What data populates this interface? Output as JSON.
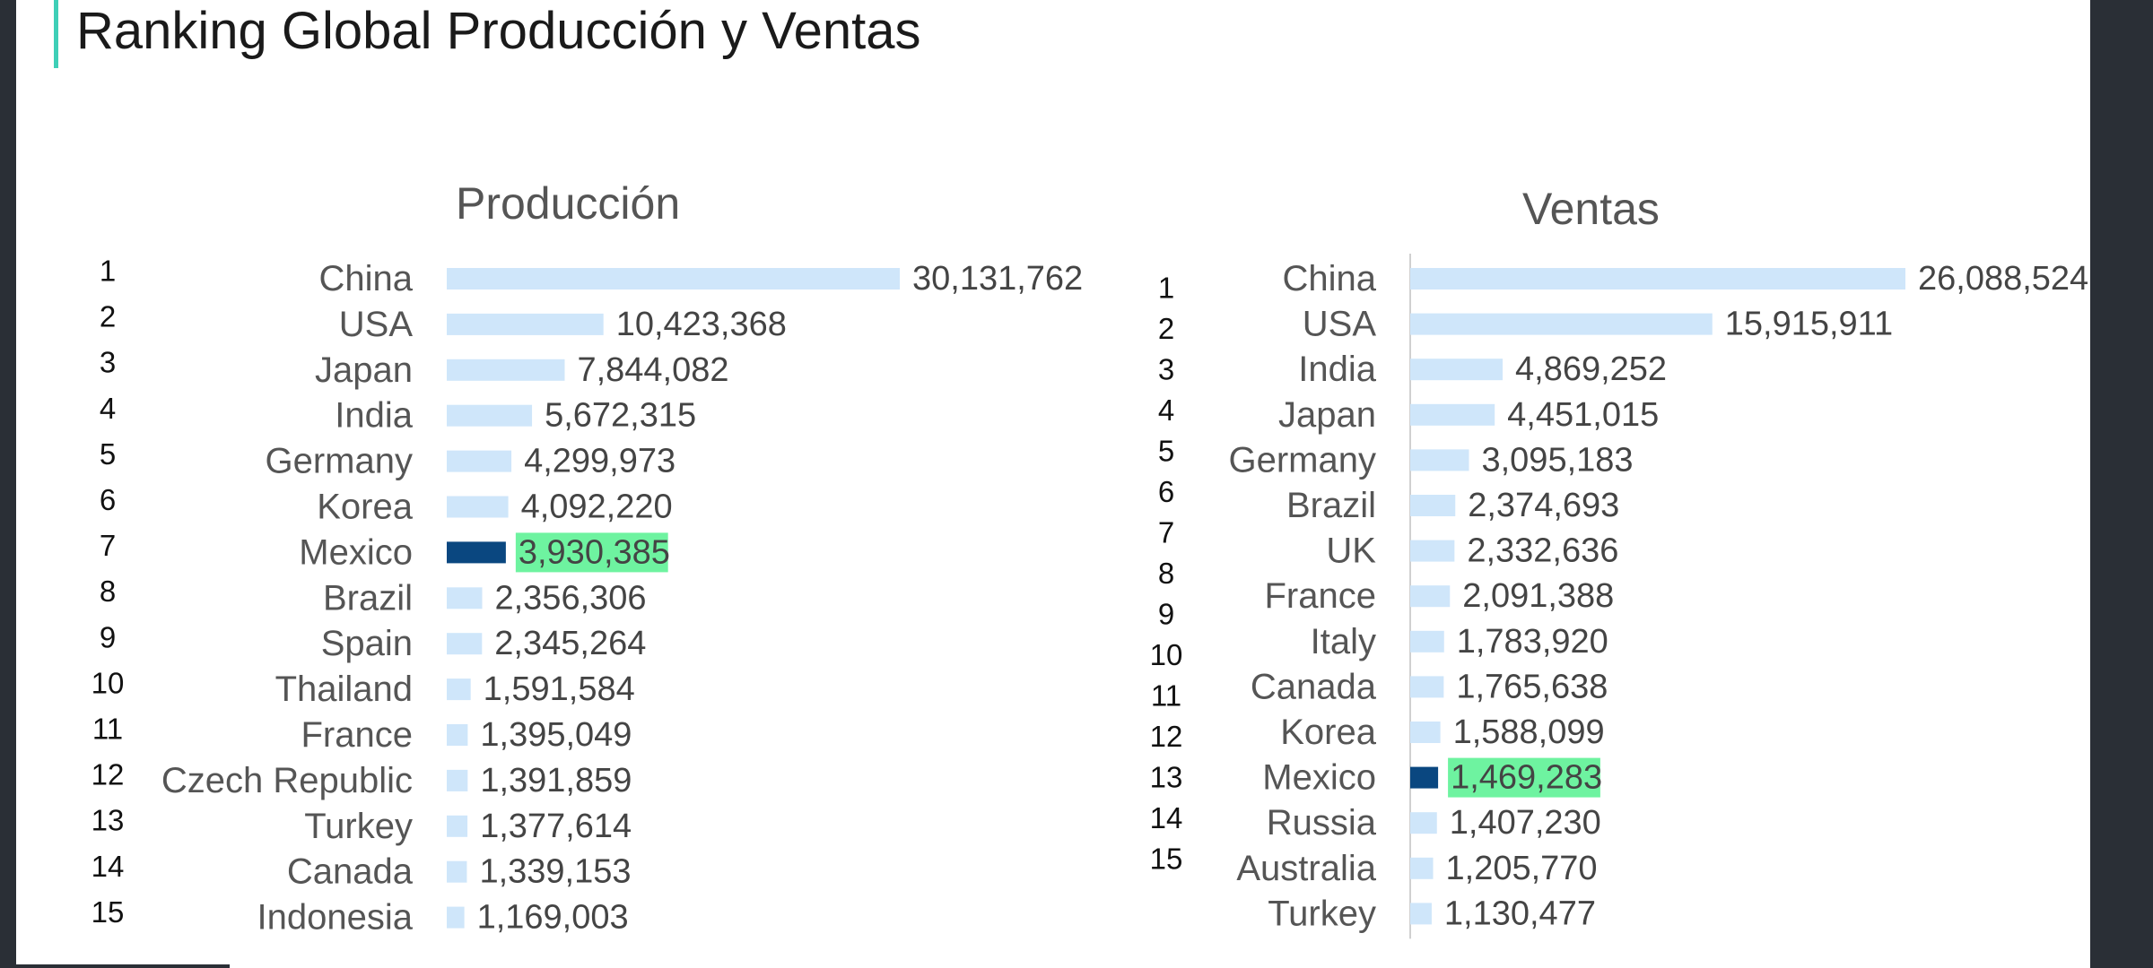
{
  "slide": {
    "title": "Ranking Global Producción y Ventas",
    "accent_color": "#3ecfb7"
  },
  "chart_data": [
    {
      "type": "bar",
      "orientation": "horizontal",
      "title": "Producción",
      "ranks": [
        "1",
        "2",
        "3",
        "4",
        "5",
        "6",
        "7",
        "8",
        "9",
        "10",
        "11",
        "12",
        "13",
        "14",
        "15"
      ],
      "categories": [
        "China",
        "USA",
        "Japan",
        "India",
        "Germany",
        "Korea",
        "Mexico",
        "Brazil",
        "Spain",
        "Thailand",
        "France",
        "Czech Republic",
        "Turkey",
        "Canada",
        "Indonesia"
      ],
      "values": [
        30131762,
        10423368,
        7844082,
        5672315,
        4299973,
        4092220,
        3930385,
        2356306,
        2345264,
        1591584,
        1395049,
        1391859,
        1377614,
        1339153,
        1169003
      ],
      "value_labels": [
        "30,131,762",
        "10,423,368",
        "7,844,082",
        "5,672,315",
        "4,299,973",
        "4,092,220",
        "3,930,385",
        "2,356,306",
        "2,345,264",
        "1,591,584",
        "1,395,049",
        "1,391,859",
        "1,377,614",
        "1,339,153",
        "1,169,003"
      ],
      "highlight": "Mexico",
      "bar_color": "#cfe6fa",
      "highlight_color": "#0a4780",
      "highlight_label_bg": "#6ef3a0",
      "grid": false,
      "legend": "none"
    },
    {
      "type": "bar",
      "orientation": "horizontal",
      "title": "Ventas",
      "ranks": [
        "1",
        "2",
        "3",
        "4",
        "5",
        "6",
        "7",
        "8",
        "9",
        "10",
        "11",
        "12",
        "13",
        "14",
        "15"
      ],
      "categories": [
        "China",
        "USA",
        "India",
        "Japan",
        "Germany",
        "Brazil",
        "UK",
        "France",
        "Italy",
        "Canada",
        "Korea",
        "Mexico",
        "Russia",
        "Australia",
        "Turkey"
      ],
      "values": [
        26088524,
        15915911,
        4869252,
        4451015,
        3095183,
        2374693,
        2332636,
        2091388,
        1783920,
        1765638,
        1588099,
        1469283,
        1407230,
        1205770,
        1130477
      ],
      "value_labels": [
        "26,088,524",
        "15,915,911",
        "4,869,252",
        "4,451,015",
        "3,095,183",
        "2,374,693",
        "2,332,636",
        "2,091,388",
        "1,783,920",
        "1,765,638",
        "1,588,099",
        "1,469,283",
        "1,407,230",
        "1,205,770",
        "1,130,477"
      ],
      "highlight": "Mexico",
      "bar_color": "#cfe6fa",
      "highlight_color": "#0a4780",
      "highlight_label_bg": "#6ef3a0",
      "grid": false,
      "legend": "none"
    }
  ]
}
